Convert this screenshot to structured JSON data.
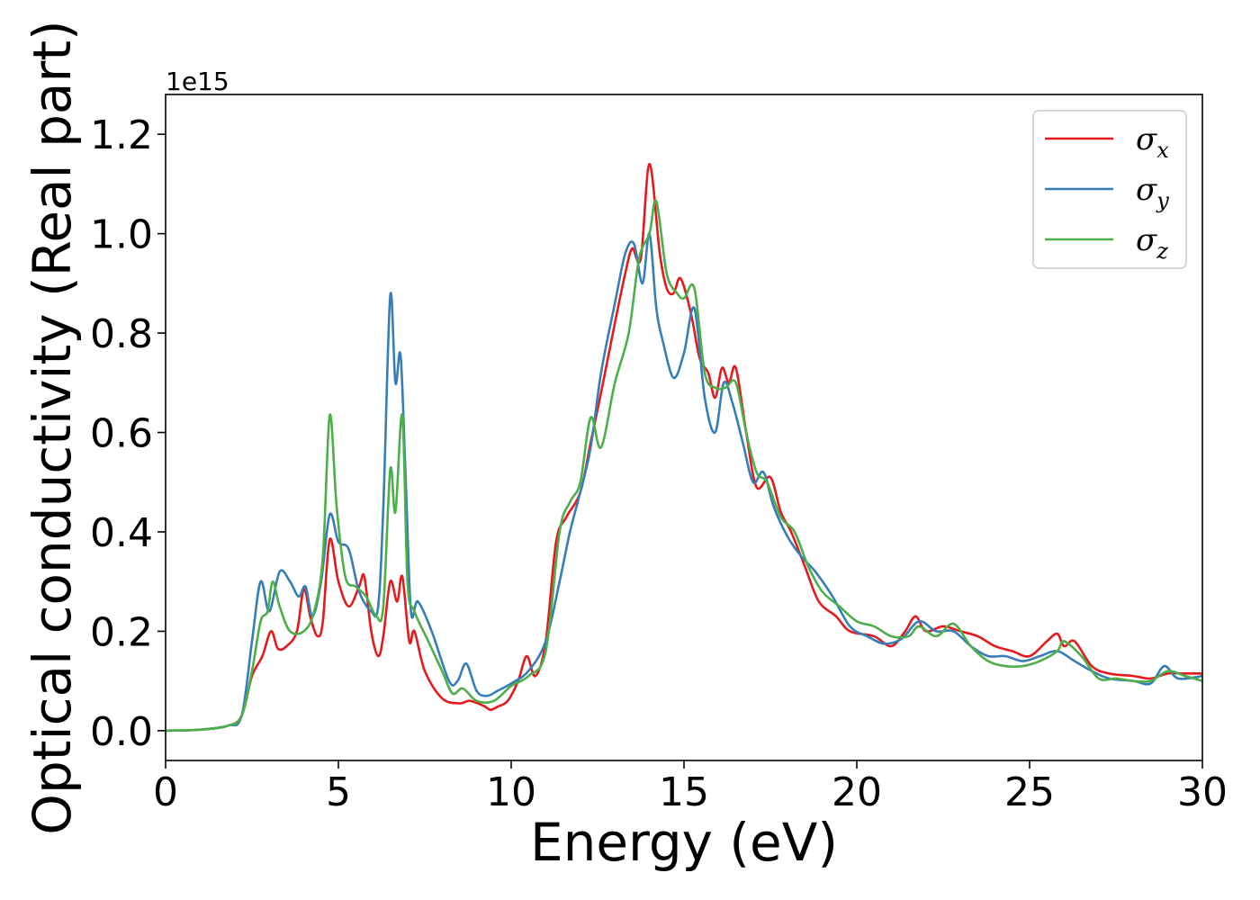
{
  "chart_data": {
    "type": "line",
    "xlabel": "Energy (eV)",
    "ylabel": "Optical conductivity (Real part)",
    "y_offset_label": "1e15",
    "xlim": [
      0,
      30
    ],
    "ylim": [
      -0.06,
      1.28
    ],
    "x_ticks": [
      0,
      5,
      10,
      15,
      20,
      25,
      30
    ],
    "x_tick_labels": [
      "0",
      "5",
      "10",
      "15",
      "20",
      "25",
      "30"
    ],
    "y_ticks": [
      0.0,
      0.2,
      0.4,
      0.6,
      0.8,
      1.0,
      1.2
    ],
    "y_tick_labels": [
      "0.0",
      "0.2",
      "0.4",
      "0.6",
      "0.8",
      "1.0",
      "1.2"
    ],
    "grid": false,
    "legend_position": "top-right",
    "series": [
      {
        "name": "σx",
        "symbol": "σ",
        "subscript": "x",
        "color": "#e41a1c",
        "points": [
          [
            0,
            0
          ],
          [
            1,
            0.002
          ],
          [
            1.8,
            0.01
          ],
          [
            2.2,
            0.03
          ],
          [
            2.5,
            0.11
          ],
          [
            2.8,
            0.15
          ],
          [
            3.05,
            0.2
          ],
          [
            3.25,
            0.165
          ],
          [
            3.5,
            0.17
          ],
          [
            3.8,
            0.2
          ],
          [
            4.0,
            0.285
          ],
          [
            4.2,
            0.225
          ],
          [
            4.4,
            0.19
          ],
          [
            4.55,
            0.22
          ],
          [
            4.75,
            0.385
          ],
          [
            5.0,
            0.3
          ],
          [
            5.3,
            0.25
          ],
          [
            5.6,
            0.29
          ],
          [
            5.75,
            0.31
          ],
          [
            5.95,
            0.2
          ],
          [
            6.15,
            0.15
          ],
          [
            6.3,
            0.19
          ],
          [
            6.5,
            0.3
          ],
          [
            6.7,
            0.26
          ],
          [
            6.85,
            0.31
          ],
          [
            7.05,
            0.18
          ],
          [
            7.2,
            0.2
          ],
          [
            7.5,
            0.12
          ],
          [
            8.0,
            0.065
          ],
          [
            8.5,
            0.055
          ],
          [
            8.8,
            0.06
          ],
          [
            9.2,
            0.05
          ],
          [
            9.4,
            0.042
          ],
          [
            9.6,
            0.048
          ],
          [
            9.9,
            0.06
          ],
          [
            10.2,
            0.1
          ],
          [
            10.45,
            0.15
          ],
          [
            10.7,
            0.11
          ],
          [
            11.0,
            0.18
          ],
          [
            11.3,
            0.38
          ],
          [
            11.6,
            0.43
          ],
          [
            12.0,
            0.48
          ],
          [
            12.3,
            0.58
          ],
          [
            12.6,
            0.68
          ],
          [
            13.0,
            0.82
          ],
          [
            13.3,
            0.92
          ],
          [
            13.5,
            0.97
          ],
          [
            13.75,
            0.95
          ],
          [
            14.0,
            1.14
          ],
          [
            14.3,
            0.96
          ],
          [
            14.5,
            0.89
          ],
          [
            14.7,
            0.88
          ],
          [
            14.9,
            0.91
          ],
          [
            15.2,
            0.84
          ],
          [
            15.45,
            0.75
          ],
          [
            15.7,
            0.72
          ],
          [
            15.9,
            0.67
          ],
          [
            16.1,
            0.73
          ],
          [
            16.3,
            0.7
          ],
          [
            16.5,
            0.73
          ],
          [
            16.8,
            0.6
          ],
          [
            17.1,
            0.49
          ],
          [
            17.5,
            0.51
          ],
          [
            17.8,
            0.44
          ],
          [
            18.1,
            0.4
          ],
          [
            18.5,
            0.33
          ],
          [
            18.9,
            0.26
          ],
          [
            19.4,
            0.23
          ],
          [
            19.8,
            0.2
          ],
          [
            20.5,
            0.19
          ],
          [
            21.0,
            0.17
          ],
          [
            21.4,
            0.2
          ],
          [
            21.7,
            0.23
          ],
          [
            22.0,
            0.2
          ],
          [
            22.5,
            0.21
          ],
          [
            23.0,
            0.2
          ],
          [
            23.5,
            0.19
          ],
          [
            24.0,
            0.17
          ],
          [
            24.5,
            0.16
          ],
          [
            25.0,
            0.15
          ],
          [
            25.5,
            0.18
          ],
          [
            25.8,
            0.195
          ],
          [
            26.0,
            0.17
          ],
          [
            26.3,
            0.18
          ],
          [
            26.8,
            0.13
          ],
          [
            27.3,
            0.115
          ],
          [
            28.0,
            0.11
          ],
          [
            28.5,
            0.105
          ],
          [
            29.0,
            0.115
          ],
          [
            29.5,
            0.115
          ],
          [
            30.0,
            0.115
          ]
        ]
      },
      {
        "name": "σy",
        "symbol": "σ",
        "subscript": "y",
        "color": "#377eb8",
        "points": [
          [
            0,
            0
          ],
          [
            1,
            0.002
          ],
          [
            1.8,
            0.01
          ],
          [
            2.2,
            0.03
          ],
          [
            2.5,
            0.18
          ],
          [
            2.75,
            0.3
          ],
          [
            3.0,
            0.24
          ],
          [
            3.3,
            0.32
          ],
          [
            3.6,
            0.3
          ],
          [
            3.85,
            0.27
          ],
          [
            4.05,
            0.29
          ],
          [
            4.25,
            0.23
          ],
          [
            4.5,
            0.3
          ],
          [
            4.75,
            0.435
          ],
          [
            5.0,
            0.38
          ],
          [
            5.3,
            0.365
          ],
          [
            5.6,
            0.28
          ],
          [
            5.95,
            0.24
          ],
          [
            6.15,
            0.25
          ],
          [
            6.3,
            0.45
          ],
          [
            6.5,
            0.875
          ],
          [
            6.65,
            0.7
          ],
          [
            6.8,
            0.755
          ],
          [
            6.95,
            0.5
          ],
          [
            7.1,
            0.24
          ],
          [
            7.3,
            0.26
          ],
          [
            7.7,
            0.2
          ],
          [
            8.2,
            0.1
          ],
          [
            8.45,
            0.1
          ],
          [
            8.7,
            0.135
          ],
          [
            9.0,
            0.08
          ],
          [
            9.3,
            0.07
          ],
          [
            9.6,
            0.08
          ],
          [
            10.0,
            0.095
          ],
          [
            10.5,
            0.12
          ],
          [
            11.0,
            0.18
          ],
          [
            11.4,
            0.3
          ],
          [
            11.7,
            0.4
          ],
          [
            12.0,
            0.48
          ],
          [
            12.3,
            0.57
          ],
          [
            12.6,
            0.72
          ],
          [
            13.0,
            0.86
          ],
          [
            13.3,
            0.96
          ],
          [
            13.55,
            0.98
          ],
          [
            13.8,
            0.9
          ],
          [
            14.0,
            1.0
          ],
          [
            14.2,
            0.85
          ],
          [
            14.4,
            0.78
          ],
          [
            14.7,
            0.71
          ],
          [
            15.0,
            0.76
          ],
          [
            15.3,
            0.85
          ],
          [
            15.6,
            0.67
          ],
          [
            15.9,
            0.6
          ],
          [
            16.15,
            0.7
          ],
          [
            16.4,
            0.66
          ],
          [
            16.7,
            0.58
          ],
          [
            17.0,
            0.5
          ],
          [
            17.3,
            0.52
          ],
          [
            17.6,
            0.45
          ],
          [
            18.0,
            0.39
          ],
          [
            18.4,
            0.35
          ],
          [
            18.8,
            0.32
          ],
          [
            19.3,
            0.27
          ],
          [
            19.8,
            0.21
          ],
          [
            20.3,
            0.19
          ],
          [
            20.8,
            0.175
          ],
          [
            21.3,
            0.185
          ],
          [
            21.8,
            0.22
          ],
          [
            22.3,
            0.2
          ],
          [
            22.8,
            0.2
          ],
          [
            23.3,
            0.17
          ],
          [
            23.8,
            0.15
          ],
          [
            24.3,
            0.15
          ],
          [
            24.8,
            0.14
          ],
          [
            25.3,
            0.15
          ],
          [
            25.8,
            0.16
          ],
          [
            26.3,
            0.14
          ],
          [
            26.8,
            0.12
          ],
          [
            27.3,
            0.105
          ],
          [
            28.0,
            0.1
          ],
          [
            28.5,
            0.095
          ],
          [
            28.9,
            0.13
          ],
          [
            29.3,
            0.105
          ],
          [
            30.0,
            0.11
          ]
        ]
      },
      {
        "name": "σz",
        "symbol": "σ",
        "subscript": "z",
        "color": "#4daf4a",
        "points": [
          [
            0,
            0
          ],
          [
            1,
            0.002
          ],
          [
            1.8,
            0.01
          ],
          [
            2.2,
            0.03
          ],
          [
            2.5,
            0.12
          ],
          [
            2.75,
            0.22
          ],
          [
            2.95,
            0.24
          ],
          [
            3.1,
            0.3
          ],
          [
            3.3,
            0.25
          ],
          [
            3.6,
            0.2
          ],
          [
            4.0,
            0.2
          ],
          [
            4.3,
            0.24
          ],
          [
            4.55,
            0.35
          ],
          [
            4.75,
            0.635
          ],
          [
            4.95,
            0.45
          ],
          [
            5.2,
            0.31
          ],
          [
            5.5,
            0.29
          ],
          [
            5.8,
            0.27
          ],
          [
            6.1,
            0.23
          ],
          [
            6.3,
            0.25
          ],
          [
            6.5,
            0.525
          ],
          [
            6.65,
            0.44
          ],
          [
            6.85,
            0.635
          ],
          [
            7.0,
            0.3
          ],
          [
            7.2,
            0.24
          ],
          [
            7.6,
            0.18
          ],
          [
            8.0,
            0.12
          ],
          [
            8.3,
            0.075
          ],
          [
            8.6,
            0.085
          ],
          [
            9.0,
            0.06
          ],
          [
            9.5,
            0.06
          ],
          [
            10.0,
            0.09
          ],
          [
            10.5,
            0.11
          ],
          [
            11.0,
            0.16
          ],
          [
            11.4,
            0.4
          ],
          [
            11.7,
            0.46
          ],
          [
            12.0,
            0.5
          ],
          [
            12.3,
            0.63
          ],
          [
            12.6,
            0.57
          ],
          [
            13.0,
            0.7
          ],
          [
            13.4,
            0.8
          ],
          [
            13.7,
            0.95
          ],
          [
            14.0,
            1.0
          ],
          [
            14.2,
            1.065
          ],
          [
            14.5,
            0.92
          ],
          [
            14.8,
            0.88
          ],
          [
            15.0,
            0.87
          ],
          [
            15.3,
            0.89
          ],
          [
            15.6,
            0.72
          ],
          [
            15.9,
            0.69
          ],
          [
            16.2,
            0.69
          ],
          [
            16.5,
            0.7
          ],
          [
            16.8,
            0.6
          ],
          [
            17.1,
            0.52
          ],
          [
            17.4,
            0.5
          ],
          [
            17.8,
            0.43
          ],
          [
            18.2,
            0.4
          ],
          [
            18.6,
            0.33
          ],
          [
            19.0,
            0.28
          ],
          [
            19.5,
            0.25
          ],
          [
            20.0,
            0.22
          ],
          [
            20.5,
            0.21
          ],
          [
            21.0,
            0.19
          ],
          [
            21.5,
            0.19
          ],
          [
            21.8,
            0.21
          ],
          [
            22.3,
            0.19
          ],
          [
            22.8,
            0.215
          ],
          [
            23.3,
            0.17
          ],
          [
            23.8,
            0.14
          ],
          [
            24.3,
            0.13
          ],
          [
            24.8,
            0.13
          ],
          [
            25.3,
            0.14
          ],
          [
            25.8,
            0.16
          ],
          [
            26.0,
            0.18
          ],
          [
            26.5,
            0.15
          ],
          [
            27.0,
            0.105
          ],
          [
            27.5,
            0.105
          ],
          [
            28.0,
            0.1
          ],
          [
            28.5,
            0.1
          ],
          [
            29.0,
            0.12
          ],
          [
            29.5,
            0.11
          ],
          [
            30.0,
            0.1
          ]
        ]
      }
    ]
  }
}
